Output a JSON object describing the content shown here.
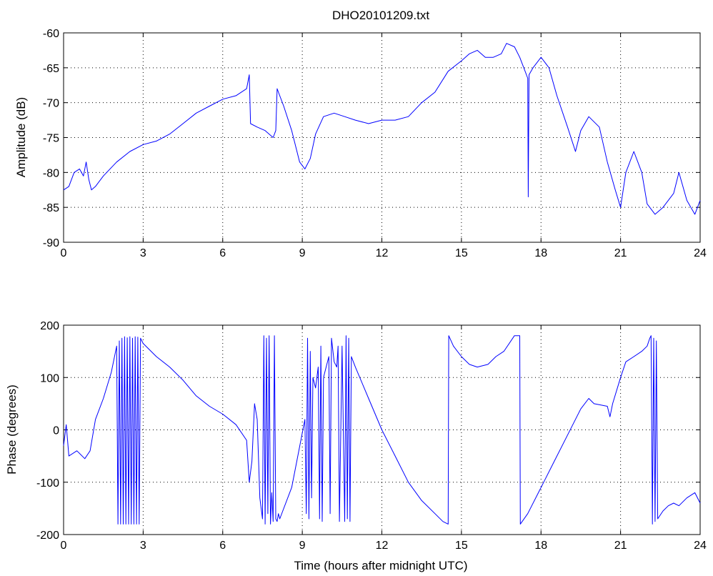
{
  "title": "DHO20101209.txt",
  "line_color": "#0000ff",
  "chart_data": [
    {
      "type": "line",
      "title": "DHO20101209.txt",
      "xlabel": "",
      "ylabel": "Amplitude (dB)",
      "xlim": [
        0,
        24
      ],
      "ylim": [
        -90,
        -60
      ],
      "xticks": [
        0,
        3,
        6,
        9,
        12,
        15,
        18,
        21,
        24
      ],
      "yticks": [
        -90,
        -85,
        -80,
        -75,
        -70,
        -65,
        -60
      ],
      "grid": true,
      "series": [
        {
          "x": [
            0,
            0.2,
            0.4,
            0.6,
            0.75,
            0.85,
            0.95,
            1.05,
            1.2,
            1.5,
            2.0,
            2.5,
            3.0,
            3.5,
            4.0,
            4.5,
            5.0,
            5.5,
            6.0,
            6.5,
            6.9,
            7.0,
            7.05,
            7.3,
            7.6,
            7.9,
            8.0,
            8.05,
            8.1,
            8.3,
            8.6,
            8.9,
            9.1,
            9.3,
            9.5,
            9.8,
            10.2,
            10.6,
            11.0,
            11.5,
            12.0,
            12.5,
            13.0,
            13.5,
            14.0,
            14.5,
            15.0,
            15.3,
            15.6,
            15.9,
            16.2,
            16.5,
            16.7,
            17.0,
            17.2,
            17.4,
            17.5,
            17.52,
            17.55,
            17.7,
            18.0,
            18.3,
            18.6,
            19.0,
            19.3,
            19.5,
            19.8,
            20.2,
            20.5,
            20.8,
            21.0,
            21.2,
            21.5,
            21.8,
            22.0,
            22.3,
            22.6,
            23.0,
            23.2,
            23.5,
            23.8,
            24.0
          ],
          "y": [
            -82.5,
            -82,
            -80,
            -79.5,
            -80.5,
            -78.5,
            -81,
            -82.5,
            -82,
            -80.5,
            -78.5,
            -77,
            -76,
            -75.5,
            -74.5,
            -73,
            -71.5,
            -70.5,
            -69.5,
            -69,
            -68,
            -66,
            -73,
            -73.5,
            -74,
            -75,
            -74,
            -68,
            -68.5,
            -70.5,
            -74,
            -78.5,
            -79.5,
            -78,
            -74.5,
            -72,
            -71.5,
            -72,
            -72.5,
            -73,
            -72.5,
            -72.5,
            -72,
            -70,
            -68.5,
            -65.5,
            -64,
            -63,
            -62.5,
            -63.5,
            -63.5,
            -63,
            -61.5,
            -62,
            -63.5,
            -65.5,
            -66.5,
            -83.5,
            -66,
            -65,
            -63.5,
            -65,
            -69,
            -73.5,
            -77,
            -74,
            -72,
            -73.5,
            -78.5,
            -82.5,
            -85,
            -80,
            -77,
            -80,
            -84.5,
            -86,
            -85,
            -83,
            -80,
            -84,
            -86,
            -84
          ]
        }
      ]
    },
    {
      "type": "line",
      "title": "",
      "xlabel": "Time (hours after midnight UTC)",
      "ylabel": "Phase (degrees)",
      "xlim": [
        0,
        24
      ],
      "ylim": [
        -200,
        200
      ],
      "xticks": [
        0,
        3,
        6,
        9,
        12,
        15,
        18,
        21,
        24
      ],
      "yticks": [
        -200,
        -100,
        0,
        100,
        200
      ],
      "grid": true,
      "series": [
        {
          "x": [
            0,
            0.1,
            0.2,
            0.5,
            0.8,
            1.0,
            1.2,
            1.5,
            1.8,
            2.0,
            2.05,
            2.1,
            2.15,
            2.2,
            2.25,
            2.3,
            2.35,
            2.4,
            2.45,
            2.5,
            2.55,
            2.6,
            2.65,
            2.7,
            2.75,
            2.8,
            2.85,
            2.9,
            3.0,
            3.5,
            4.0,
            4.5,
            5.0,
            5.5,
            6.0,
            6.5,
            6.9,
            7.0,
            7.1,
            7.2,
            7.3,
            7.4,
            7.5,
            7.55,
            7.6,
            7.65,
            7.7,
            7.75,
            7.8,
            7.85,
            7.9,
            7.95,
            8.0,
            8.05,
            8.1,
            8.15,
            8.6,
            9.1,
            9.15,
            9.2,
            9.25,
            9.3,
            9.35,
            9.4,
            9.5,
            9.6,
            9.65,
            9.7,
            9.75,
            9.8,
            9.9,
            10.0,
            10.05,
            10.1,
            10.2,
            10.3,
            10.35,
            10.4,
            10.5,
            10.6,
            10.65,
            10.7,
            10.75,
            10.8,
            10.85,
            11.0,
            11.5,
            12.0,
            12.5,
            13.0,
            13.5,
            14.0,
            14.3,
            14.5,
            14.52,
            14.7,
            15.0,
            15.3,
            15.6,
            16.0,
            16.3,
            16.6,
            17.0,
            17.2,
            17.22,
            17.5,
            18.0,
            18.5,
            19.0,
            19.5,
            19.8,
            20.0,
            20.5,
            20.6,
            20.7,
            21.0,
            21.2,
            21.5,
            21.8,
            22.0,
            22.1,
            22.15,
            22.2,
            22.25,
            22.3,
            22.35,
            22.4,
            22.6,
            22.8,
            23.0,
            23.2,
            23.5,
            23.8,
            24.0
          ],
          "y": [
            -30,
            10,
            -50,
            -40,
            -55,
            -40,
            20,
            60,
            110,
            160,
            -180,
            170,
            -180,
            175,
            -180,
            178,
            -180,
            176,
            -180,
            178,
            -180,
            175,
            -180,
            178,
            -180,
            177,
            -180,
            175,
            165,
            140,
            120,
            95,
            65,
            45,
            30,
            10,
            -20,
            -100,
            -60,
            50,
            20,
            -130,
            -170,
            180,
            -180,
            175,
            -160,
            180,
            -180,
            -120,
            -175,
            180,
            -170,
            -175,
            -160,
            -170,
            -110,
            20,
            -160,
            175,
            -170,
            150,
            -130,
            100,
            80,
            120,
            -170,
            160,
            -175,
            100,
            120,
            140,
            -160,
            175,
            130,
            120,
            160,
            -175,
            160,
            -175,
            180,
            -170,
            175,
            -175,
            140,
            120,
            60,
            0,
            -50,
            -100,
            -135,
            -160,
            -175,
            -180,
            180,
            160,
            140,
            125,
            120,
            125,
            140,
            150,
            180,
            180,
            -180,
            -160,
            -110,
            -60,
            -10,
            40,
            60,
            50,
            45,
            25,
            50,
            100,
            130,
            140,
            150,
            160,
            175,
            180,
            -180,
            175,
            -175,
            170,
            -170,
            -155,
            -145,
            -140,
            -145,
            -130,
            -120,
            -140
          ]
        }
      ]
    }
  ]
}
